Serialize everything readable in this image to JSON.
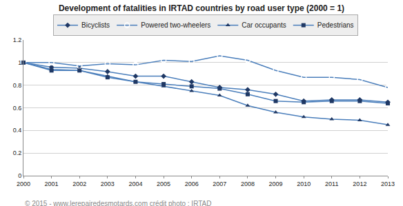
{
  "chart_data": {
    "type": "line",
    "title": "Development of fatalities in IRTAD countries by road user type (2000 = 1)",
    "x": [
      2000,
      2001,
      2002,
      2003,
      2004,
      2005,
      2006,
      2007,
      2008,
      2009,
      2010,
      2011,
      2012,
      2013
    ],
    "xlim": [
      2000,
      2013
    ],
    "xticks": [
      2000,
      2001,
      2002,
      2003,
      2004,
      2005,
      2006,
      2007,
      2008,
      2009,
      2010,
      2011,
      2012,
      2013
    ],
    "ylim": [
      0,
      1.2
    ],
    "yticks": [
      0,
      0.2,
      0.4,
      0.6,
      0.8,
      1,
      1.2
    ],
    "grid": true,
    "legend": "top",
    "series": [
      {
        "name": "Bicyclists",
        "color": "#4a7ebb",
        "marker": "diamond",
        "values": [
          1,
          0.96,
          0.95,
          0.92,
          0.88,
          0.88,
          0.83,
          0.78,
          0.76,
          0.72,
          0.66,
          0.67,
          0.67,
          0.65
        ]
      },
      {
        "name": "Powered two-wheelers",
        "color": "#4a7ebb",
        "marker": "circle-open",
        "values": [
          1,
          1.0,
          0.97,
          0.99,
          0.98,
          1.02,
          1.01,
          1.06,
          1.02,
          0.93,
          0.87,
          0.87,
          0.85,
          0.78
        ]
      },
      {
        "name": "Car occupants",
        "color": "#4a7ebb",
        "marker": "triangle-up",
        "values": [
          1,
          0.94,
          0.93,
          0.88,
          0.83,
          0.79,
          0.75,
          0.71,
          0.62,
          0.56,
          0.52,
          0.5,
          0.49,
          0.45
        ]
      },
      {
        "name": "Pedestrians",
        "color": "#4a7ebb",
        "marker": "square",
        "values": [
          1,
          0.93,
          0.93,
          0.87,
          0.83,
          0.81,
          0.79,
          0.77,
          0.72,
          0.66,
          0.65,
          0.66,
          0.66,
          0.64
        ]
      }
    ],
    "annotations": [
      "© 2015 - www.lerepairedesmotards.com crédit photo : IRTAD"
    ]
  }
}
